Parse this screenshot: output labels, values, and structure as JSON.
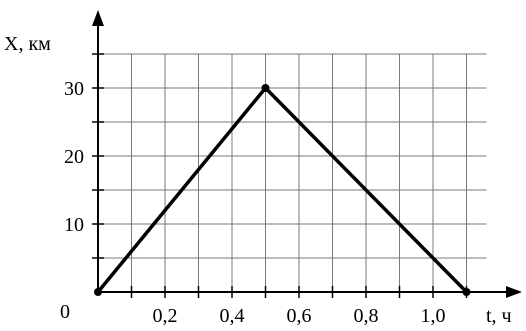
{
  "chart_data": {
    "type": "line",
    "xlabel": "t, ч",
    "ylabel": "X, км",
    "origin_label": "0",
    "x_ticks": [
      0.1,
      0.2,
      0.3,
      0.4,
      0.5,
      0.6,
      0.7,
      0.8,
      0.9,
      1.0,
      1.1
    ],
    "x_tick_labels": [
      {
        "value": 0.2,
        "text": "0,2"
      },
      {
        "value": 0.4,
        "text": "0,4"
      },
      {
        "value": 0.6,
        "text": "0,6"
      },
      {
        "value": 0.8,
        "text": "0,8"
      },
      {
        "value": 1.0,
        "text": "1,0"
      }
    ],
    "y_ticks": [
      5,
      10,
      15,
      20,
      25,
      30,
      35
    ],
    "y_tick_labels": [
      {
        "value": 10,
        "text": "10"
      },
      {
        "value": 20,
        "text": "20"
      },
      {
        "value": 30,
        "text": "30"
      }
    ],
    "xlim": [
      0,
      1.15
    ],
    "ylim": [
      0,
      35
    ],
    "grid": true,
    "series": [
      {
        "x": [
          0,
          0.5,
          1.1
        ],
        "y": [
          0,
          30,
          0
        ],
        "color": "#000000"
      }
    ]
  }
}
